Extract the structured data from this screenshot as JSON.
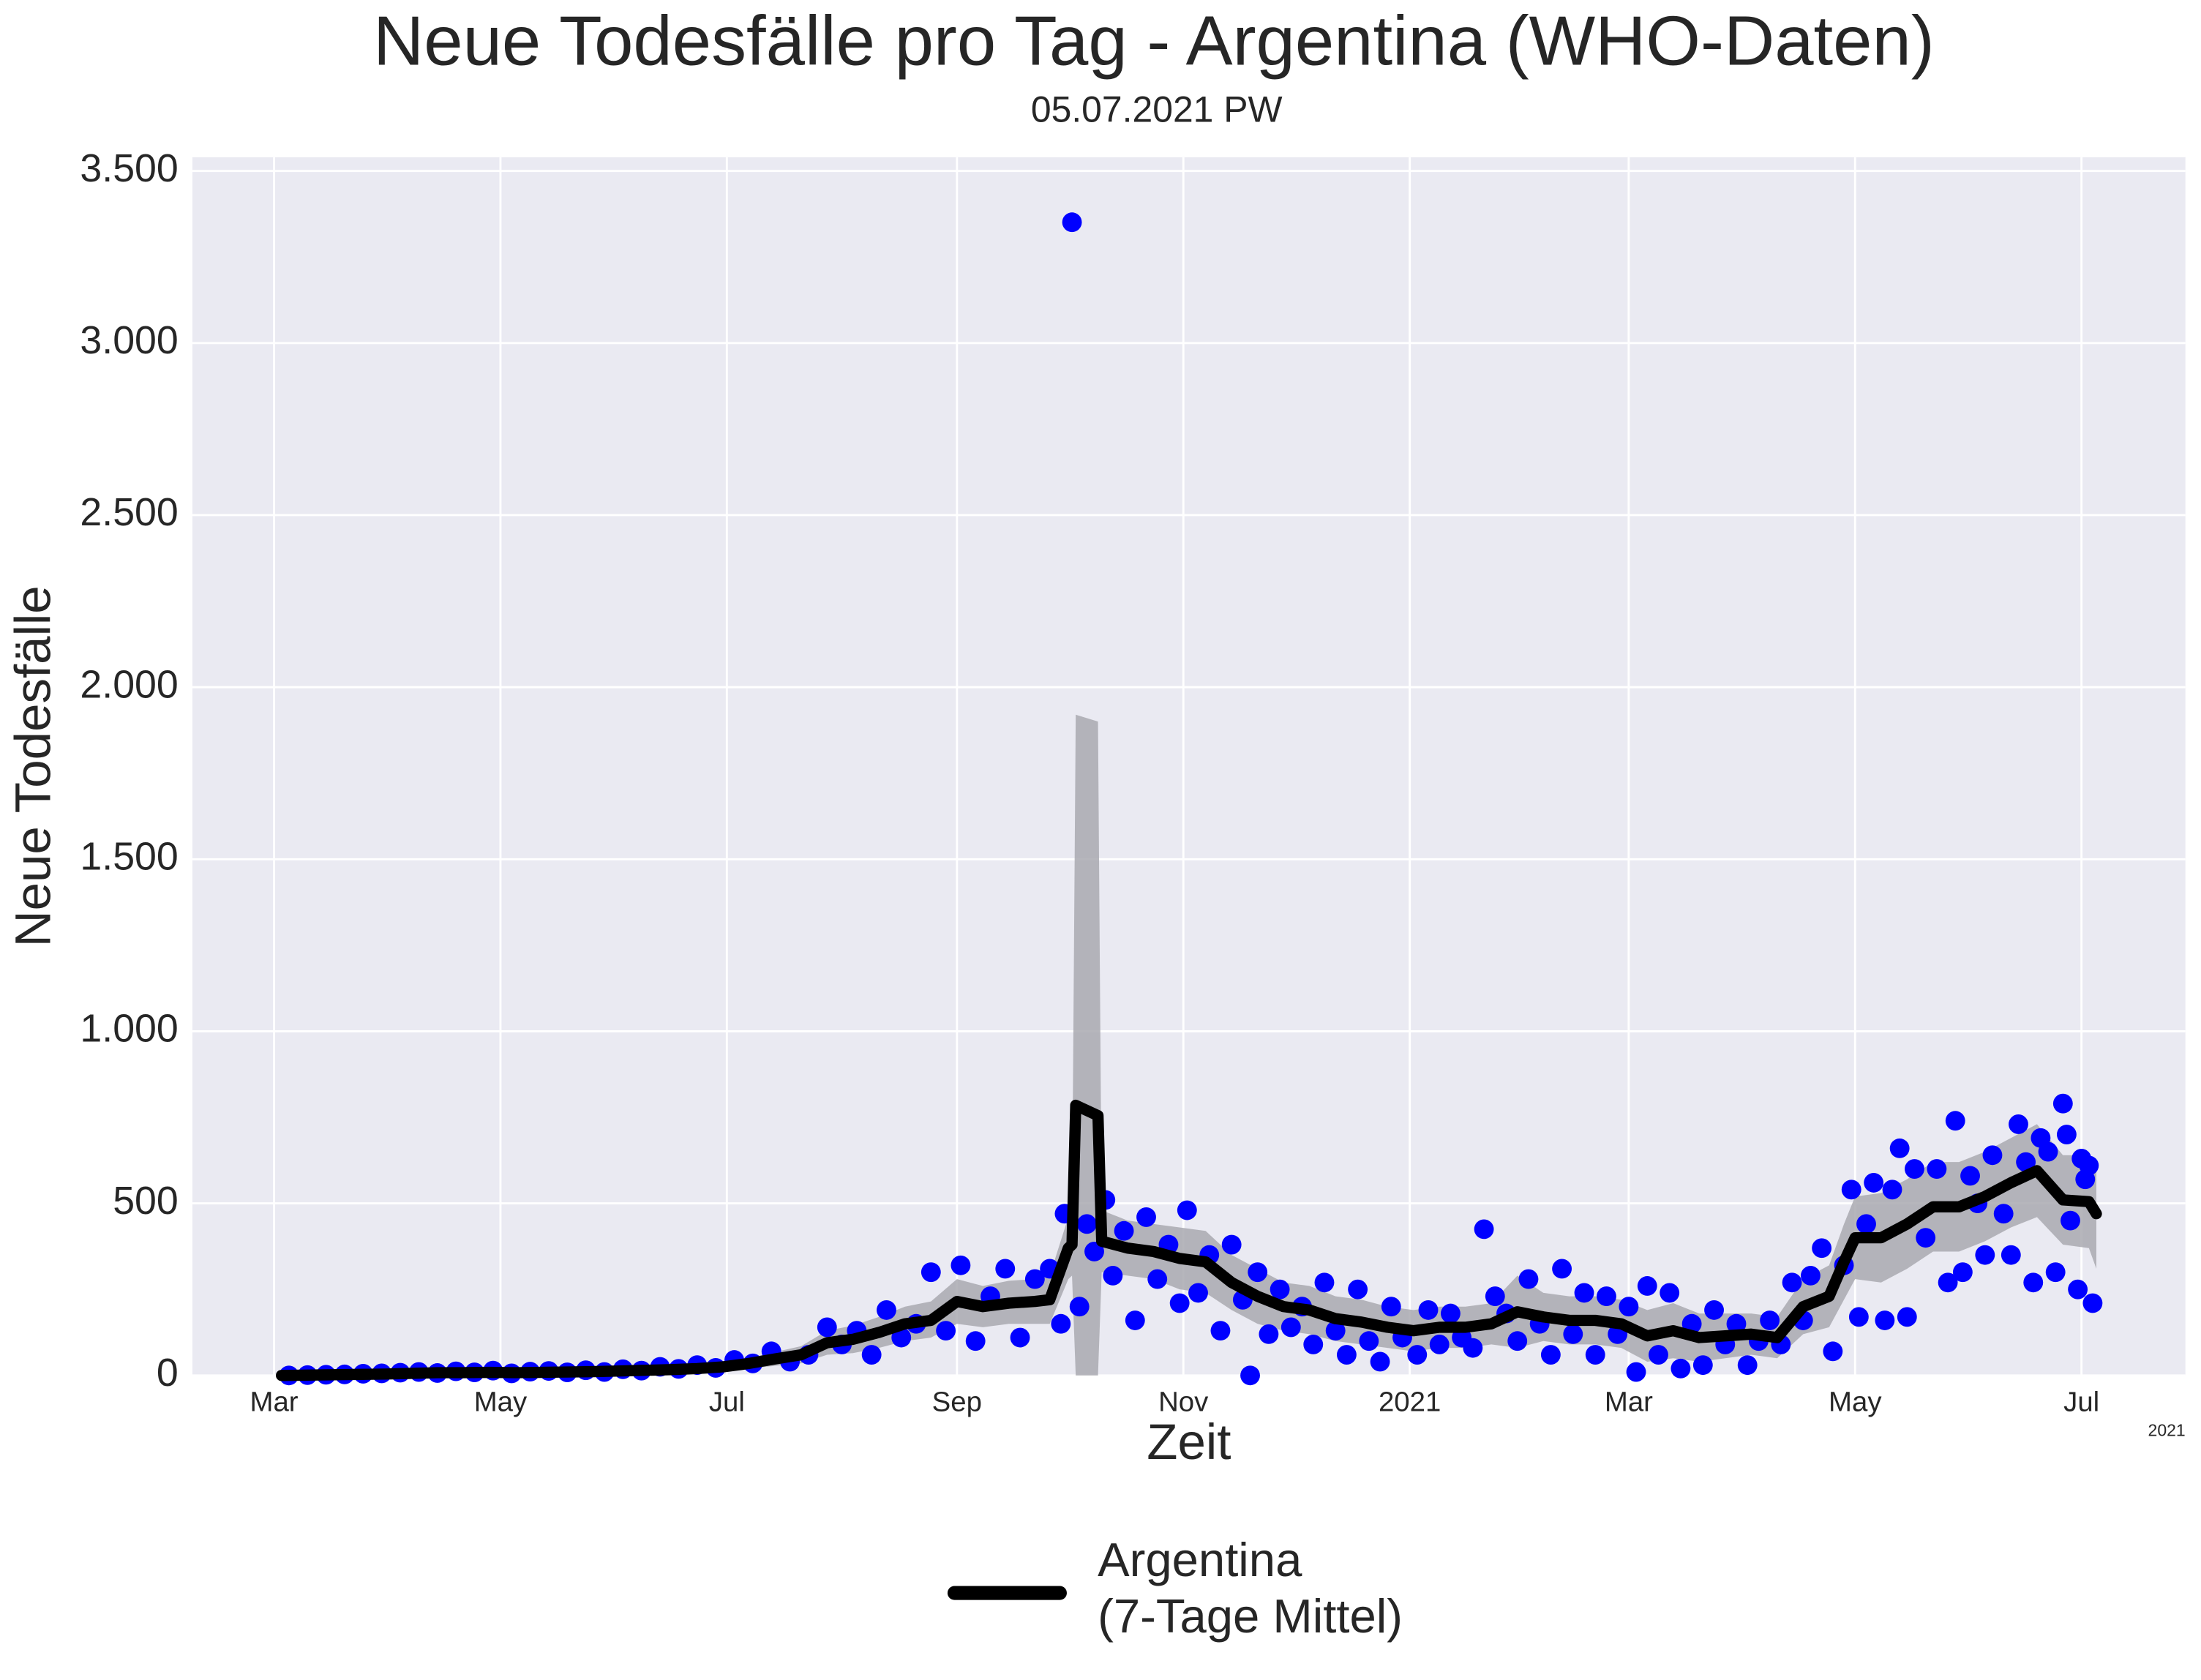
{
  "chart_data": {
    "type": "line",
    "title": "Neue Todesfälle pro Tag - Argentina (WHO-Daten)",
    "subtitle": "05.07.2021 PW",
    "xlabel": "Zeit",
    "ylabel": "Neue Todesfälle",
    "x_offset_label": "2021",
    "grid": true,
    "legend": "lower center",
    "xlim": [
      "2020-02-08",
      "2021-07-29"
    ],
    "ylim": [
      0,
      3540
    ],
    "yticks": [
      0,
      500,
      {
        "value": 1000,
        "label": "1.000"
      },
      {
        "value": 1500,
        "label": "1.500"
      },
      {
        "value": 2000,
        "label": "2.000"
      },
      {
        "value": 2500,
        "label": "2.500"
      },
      {
        "value": 3000,
        "label": "3.000"
      },
      {
        "value": 3500,
        "label": "3.500"
      }
    ],
    "xticks": [
      {
        "value": "2020-03-01",
        "label": "Mar"
      },
      {
        "value": "2020-05-01",
        "label": "May"
      },
      {
        "value": "2020-07-01",
        "label": "Jul"
      },
      {
        "value": "2020-09-01",
        "label": "Sep"
      },
      {
        "value": "2020-11-01",
        "label": "Nov"
      },
      {
        "value": "2021-01-01",
        "label": "2021"
      },
      {
        "value": "2021-03-01",
        "label": "Mar"
      },
      {
        "value": "2021-05-01",
        "label": "May"
      },
      {
        "value": "2021-07-01",
        "label": "Jul"
      }
    ],
    "series": [
      {
        "name": "Argentina\n(7-Tage Mittel)",
        "color": "#000000",
        "band_color": "#a9a9b0",
        "x": [
          "2020-03-03",
          "2020-03-10",
          "2020-03-17",
          "2020-03-24",
          "2020-03-31",
          "2020-04-07",
          "2020-04-14",
          "2020-04-21",
          "2020-04-28",
          "2020-05-05",
          "2020-05-12",
          "2020-05-19",
          "2020-05-26",
          "2020-06-02",
          "2020-06-09",
          "2020-06-16",
          "2020-06-23",
          "2020-06-30",
          "2020-07-07",
          "2020-07-14",
          "2020-07-21",
          "2020-07-28",
          "2020-08-04",
          "2020-08-11",
          "2020-08-18",
          "2020-08-25",
          "2020-09-01",
          "2020-09-08",
          "2020-09-15",
          "2020-09-22",
          "2020-09-26",
          "2020-10-01",
          "2020-10-02",
          "2020-10-03",
          "2020-10-09",
          "2020-10-10",
          "2020-10-17",
          "2020-10-24",
          "2020-10-31",
          "2020-11-07",
          "2020-11-14",
          "2020-11-21",
          "2020-11-28",
          "2020-12-05",
          "2020-12-12",
          "2020-12-19",
          "2020-12-26",
          "2021-01-02",
          "2021-01-09",
          "2021-01-16",
          "2021-01-23",
          "2021-01-30",
          "2021-02-06",
          "2021-02-13",
          "2021-02-20",
          "2021-02-27",
          "2021-03-06",
          "2021-03-13",
          "2021-03-20",
          "2021-03-27",
          "2021-04-03",
          "2021-04-10",
          "2021-04-17",
          "2021-04-24",
          "2021-04-28",
          "2021-05-01",
          "2021-05-08",
          "2021-05-15",
          "2021-05-22",
          "2021-05-29",
          "2021-06-05",
          "2021-06-12",
          "2021-06-19",
          "2021-06-26",
          "2021-07-03",
          "2021-07-05"
        ],
        "values": [
          0,
          1,
          2,
          3,
          4,
          6,
          8,
          8,
          9,
          8,
          9,
          10,
          11,
          13,
          15,
          17,
          20,
          25,
          35,
          48,
          60,
          95,
          105,
          125,
          150,
          160,
          215,
          200,
          210,
          215,
          220,
          370,
          380,
          785,
          755,
          390,
          370,
          360,
          340,
          330,
          270,
          230,
          200,
          190,
          165,
          155,
          140,
          130,
          140,
          140,
          150,
          185,
          170,
          160,
          160,
          150,
          115,
          130,
          110,
          115,
          120,
          110,
          200,
          230,
          330,
          400,
          400,
          440,
          490,
          490,
          520,
          560,
          595,
          510,
          505,
          470
        ],
        "lower": [
          0,
          0,
          0,
          1,
          2,
          3,
          4,
          4,
          5,
          4,
          5,
          6,
          6,
          7,
          8,
          9,
          11,
          14,
          20,
          28,
          35,
          60,
          65,
          80,
          100,
          110,
          150,
          140,
          150,
          150,
          150,
          280,
          290,
          0,
          0,
          300,
          290,
          280,
          250,
          240,
          190,
          150,
          130,
          120,
          100,
          90,
          80,
          70,
          80,
          80,
          90,
          80,
          100,
          90,
          90,
          80,
          40,
          50,
          40,
          50,
          60,
          50,
          120,
          140,
          220,
          280,
          270,
          310,
          360,
          360,
          390,
          430,
          460,
          380,
          370,
          310
        ],
        "upper": [
          2,
          3,
          5,
          6,
          8,
          10,
          13,
          13,
          14,
          13,
          14,
          15,
          17,
          20,
          23,
          26,
          30,
          37,
          50,
          68,
          85,
          130,
          145,
          170,
          200,
          215,
          280,
          260,
          275,
          280,
          290,
          460,
          470,
          1920,
          1900,
          480,
          450,
          440,
          430,
          420,
          350,
          310,
          270,
          260,
          230,
          220,
          200,
          190,
          200,
          200,
          210,
          290,
          240,
          230,
          230,
          220,
          190,
          210,
          180,
          180,
          180,
          170,
          280,
          320,
          440,
          520,
          530,
          570,
          620,
          620,
          650,
          690,
          730,
          640,
          640,
          620
        ]
      },
      {
        "type": "scatter",
        "color": "#0000ff",
        "x": [
          "2020-03-05",
          "2020-03-10",
          "2020-03-15",
          "2020-03-20",
          "2020-03-25",
          "2020-03-30",
          "2020-04-04",
          "2020-04-09",
          "2020-04-14",
          "2020-04-19",
          "2020-04-24",
          "2020-04-29",
          "2020-05-04",
          "2020-05-09",
          "2020-05-14",
          "2020-05-19",
          "2020-05-24",
          "2020-05-29",
          "2020-06-03",
          "2020-06-08",
          "2020-06-13",
          "2020-06-18",
          "2020-06-23",
          "2020-06-28",
          "2020-07-03",
          "2020-07-08",
          "2020-07-13",
          "2020-07-18",
          "2020-07-23",
          "2020-07-28",
          "2020-08-01",
          "2020-08-05",
          "2020-08-09",
          "2020-08-13",
          "2020-08-17",
          "2020-08-21",
          "2020-08-25",
          "2020-08-29",
          "2020-09-02",
          "2020-09-06",
          "2020-09-10",
          "2020-09-14",
          "2020-09-18",
          "2020-09-22",
          "2020-09-26",
          "2020-09-29",
          "2020-09-30",
          "2020-10-02",
          "2020-10-04",
          "2020-10-06",
          "2020-10-08",
          "2020-10-11",
          "2020-10-13",
          "2020-10-16",
          "2020-10-19",
          "2020-10-22",
          "2020-10-25",
          "2020-10-28",
          "2020-10-31",
          "2020-11-02",
          "2020-11-05",
          "2020-11-08",
          "2020-11-11",
          "2020-11-14",
          "2020-11-17",
          "2020-11-19",
          "2020-11-21",
          "2020-11-24",
          "2020-11-27",
          "2020-11-30",
          "2020-12-03",
          "2020-12-06",
          "2020-12-09",
          "2020-12-12",
          "2020-12-15",
          "2020-12-18",
          "2020-12-21",
          "2020-12-24",
          "2020-12-27",
          "2020-12-30",
          "2021-01-03",
          "2021-01-06",
          "2021-01-09",
          "2021-01-12",
          "2021-01-15",
          "2021-01-18",
          "2021-01-21",
          "2021-01-24",
          "2021-01-27",
          "2021-01-30",
          "2021-02-02",
          "2021-02-05",
          "2021-02-08",
          "2021-02-11",
          "2021-02-14",
          "2021-02-17",
          "2021-02-20",
          "2021-02-23",
          "2021-02-26",
          "2021-03-01",
          "2021-03-03",
          "2021-03-06",
          "2021-03-09",
          "2021-03-12",
          "2021-03-15",
          "2021-03-18",
          "2021-03-21",
          "2021-03-24",
          "2021-03-27",
          "2021-03-30",
          "2021-04-02",
          "2021-04-05",
          "2021-04-08",
          "2021-04-11",
          "2021-04-14",
          "2021-04-17",
          "2021-04-19",
          "2021-04-22",
          "2021-04-25",
          "2021-04-28",
          "2021-04-30",
          "2021-05-02",
          "2021-05-04",
          "2021-05-06",
          "2021-05-09",
          "2021-05-11",
          "2021-05-13",
          "2021-05-15",
          "2021-05-17",
          "2021-05-20",
          "2021-05-23",
          "2021-05-26",
          "2021-05-28",
          "2021-05-30",
          "2021-06-01",
          "2021-06-03",
          "2021-06-05",
          "2021-06-07",
          "2021-06-10",
          "2021-06-12",
          "2021-06-14",
          "2021-06-16",
          "2021-06-18",
          "2021-06-20",
          "2021-06-22",
          "2021-06-24",
          "2021-06-26",
          "2021-06-27",
          "2021-06-28",
          "2021-06-30",
          "2021-07-01",
          "2021-07-02",
          "2021-07-03",
          "2021-07-04"
        ],
        "values": [
          0,
          1,
          2,
          3,
          5,
          6,
          8,
          10,
          7,
          12,
          9,
          14,
          6,
          11,
          13,
          9,
          15,
          10,
          18,
          14,
          25,
          19,
          30,
          22,
          45,
          35,
          70,
          40,
          60,
          140,
          90,
          130,
          60,
          190,
          110,
          150,
          300,
          130,
          320,
          100,
          230,
          310,
          110,
          280,
          310,
          150,
          470,
          3351,
          200,
          440,
          360,
          510,
          290,
          420,
          160,
          460,
          280,
          380,
          210,
          480,
          240,
          350,
          130,
          380,
          220,
          0,
          300,
          120,
          250,
          140,
          200,
          90,
          270,
          130,
          60,
          250,
          100,
          40,
          200,
          110,
          60,
          190,
          90,
          180,
          110,
          80,
          425,
          230,
          180,
          100,
          280,
          150,
          60,
          310,
          120,
          240,
          60,
          230,
          120,
          200,
          10,
          260,
          60,
          240,
          20,
          150,
          30,
          190,
          90,
          150,
          30,
          100,
          160,
          90,
          270,
          160,
          290,
          370,
          70,
          320,
          540,
          170,
          440,
          560,
          160,
          540,
          660,
          170,
          600,
          400,
          600,
          270,
          740,
          300,
          580,
          500,
          350,
          640,
          470,
          350,
          730,
          620,
          270,
          690,
          650,
          300,
          790,
          700,
          450,
          250,
          630,
          570,
          610,
          210
        ]
      }
    ]
  }
}
